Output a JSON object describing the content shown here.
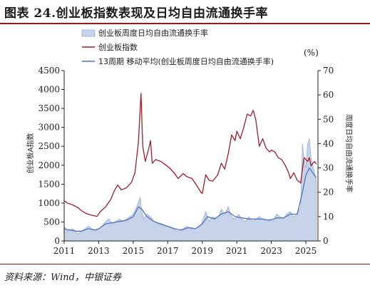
{
  "header": {
    "title": "图表 24.创业板指数表现及日均自由流通换手率"
  },
  "footer": {
    "source": "资料来源：Wind，中银证券"
  },
  "colors": {
    "accent": "#8f1b1b",
    "index_line": "#a41d2a",
    "ma_line": "#4f73b8",
    "turnover_fill": "#c7d3e8",
    "turnover_stroke": "#9aaed3"
  },
  "chart_data": {
    "type": "line",
    "legend_placement": "top-left",
    "grid": false,
    "left_axis": {
      "label": "创业板A指数",
      "ylim": [
        0,
        4500
      ],
      "ticks": [
        "0",
        "500",
        "1000",
        "1500",
        "2000",
        "2500",
        "3000",
        "3500",
        "4000",
        "4500"
      ]
    },
    "right_axis": {
      "label": "周度日均自由流通换手率",
      "unit": "(%)",
      "ylim": [
        0,
        70
      ],
      "ticks": [
        "0",
        "10",
        "20",
        "30",
        "40",
        "50",
        "60",
        "70"
      ]
    },
    "x_axis": {
      "xlim": [
        2011,
        2025.7
      ],
      "ticks": [
        "2011",
        "2013",
        "2015",
        "2017",
        "2019",
        "2021",
        "2023",
        "2025"
      ]
    },
    "legend": [
      "创业板周度日均自由流通换手率",
      "创业板指数",
      "13周期 移动平均(创业板周度日均自由流通换手率)"
    ],
    "series": [
      {
        "name": "创业板周度日均自由流通换手率",
        "axis": "right",
        "type": "area",
        "points": [
          [
            2011.0,
            6
          ],
          [
            2011.2,
            4
          ],
          [
            2011.5,
            5
          ],
          [
            2011.8,
            3
          ],
          [
            2012.0,
            4
          ],
          [
            2012.2,
            5
          ],
          [
            2012.4,
            6
          ],
          [
            2012.6,
            5
          ],
          [
            2012.8,
            4
          ],
          [
            2013.0,
            5
          ],
          [
            2013.2,
            6
          ],
          [
            2013.4,
            8
          ],
          [
            2013.6,
            9
          ],
          [
            2013.8,
            7
          ],
          [
            2014.0,
            8
          ],
          [
            2014.2,
            9
          ],
          [
            2014.4,
            8
          ],
          [
            2014.6,
            9
          ],
          [
            2014.8,
            10
          ],
          [
            2015.0,
            11
          ],
          [
            2015.2,
            14
          ],
          [
            2015.4,
            18
          ],
          [
            2015.5,
            12
          ],
          [
            2015.6,
            9
          ],
          [
            2015.8,
            11
          ],
          [
            2016.0,
            10
          ],
          [
            2016.2,
            8
          ],
          [
            2016.5,
            7
          ],
          [
            2016.8,
            6
          ],
          [
            2017.0,
            6
          ],
          [
            2017.3,
            5
          ],
          [
            2017.6,
            4
          ],
          [
            2017.9,
            5
          ],
          [
            2018.1,
            6
          ],
          [
            2018.3,
            5
          ],
          [
            2018.6,
            5
          ],
          [
            2018.9,
            6
          ],
          [
            2019.0,
            8
          ],
          [
            2019.2,
            12
          ],
          [
            2019.4,
            8
          ],
          [
            2019.6,
            10
          ],
          [
            2019.9,
            9
          ],
          [
            2020.1,
            13
          ],
          [
            2020.3,
            11
          ],
          [
            2020.5,
            14
          ],
          [
            2020.7,
            10
          ],
          [
            2020.9,
            9
          ],
          [
            2021.1,
            11
          ],
          [
            2021.3,
            9
          ],
          [
            2021.5,
            8
          ],
          [
            2021.7,
            10
          ],
          [
            2021.9,
            8
          ],
          [
            2022.1,
            9
          ],
          [
            2022.3,
            10
          ],
          [
            2022.5,
            9
          ],
          [
            2022.7,
            8
          ],
          [
            2022.9,
            9
          ],
          [
            2023.1,
            8
          ],
          [
            2023.3,
            11
          ],
          [
            2023.5,
            10
          ],
          [
            2023.7,
            9
          ],
          [
            2023.9,
            11
          ],
          [
            2024.1,
            12
          ],
          [
            2024.3,
            10
          ],
          [
            2024.5,
            11
          ],
          [
            2024.7,
            14
          ],
          [
            2024.8,
            40
          ],
          [
            2024.9,
            33
          ],
          [
            2025.0,
            30
          ],
          [
            2025.1,
            40
          ],
          [
            2025.2,
            42
          ],
          [
            2025.3,
            34
          ],
          [
            2025.4,
            31
          ],
          [
            2025.5,
            28
          ],
          [
            2025.6,
            25
          ]
        ]
      },
      {
        "name": "创业板指数",
        "axis": "left",
        "type": "line",
        "points": [
          [
            2011.0,
            1060
          ],
          [
            2011.2,
            1000
          ],
          [
            2011.5,
            950
          ],
          [
            2011.8,
            880
          ],
          [
            2012.0,
            800
          ],
          [
            2012.3,
            720
          ],
          [
            2012.6,
            680
          ],
          [
            2012.9,
            650
          ],
          [
            2013.1,
            780
          ],
          [
            2013.4,
            900
          ],
          [
            2013.7,
            1100
          ],
          [
            2013.9,
            1320
          ],
          [
            2014.1,
            1480
          ],
          [
            2014.3,
            1350
          ],
          [
            2014.6,
            1400
          ],
          [
            2014.9,
            1550
          ],
          [
            2015.1,
            1800
          ],
          [
            2015.3,
            2600
          ],
          [
            2015.45,
            3900
          ],
          [
            2015.55,
            2500
          ],
          [
            2015.7,
            2100
          ],
          [
            2015.9,
            2450
          ],
          [
            2016.0,
            2650
          ],
          [
            2016.1,
            2050
          ],
          [
            2016.3,
            2150
          ],
          [
            2016.6,
            2100
          ],
          [
            2016.9,
            2000
          ],
          [
            2017.1,
            1930
          ],
          [
            2017.4,
            1780
          ],
          [
            2017.6,
            1650
          ],
          [
            2017.9,
            1780
          ],
          [
            2018.1,
            1700
          ],
          [
            2018.4,
            1650
          ],
          [
            2018.7,
            1450
          ],
          [
            2018.9,
            1300
          ],
          [
            2019.0,
            1250
          ],
          [
            2019.2,
            1750
          ],
          [
            2019.4,
            1600
          ],
          [
            2019.6,
            1580
          ],
          [
            2019.9,
            1750
          ],
          [
            2020.1,
            2050
          ],
          [
            2020.3,
            1900
          ],
          [
            2020.5,
            2300
          ],
          [
            2020.7,
            2800
          ],
          [
            2020.9,
            2650
          ],
          [
            2021.0,
            2900
          ],
          [
            2021.2,
            2700
          ],
          [
            2021.4,
            3000
          ],
          [
            2021.6,
            3350
          ],
          [
            2021.8,
            3300
          ],
          [
            2021.95,
            3450
          ],
          [
            2022.1,
            3200
          ],
          [
            2022.3,
            2500
          ],
          [
            2022.5,
            2700
          ],
          [
            2022.7,
            2450
          ],
          [
            2022.9,
            2350
          ],
          [
            2023.0,
            2400
          ],
          [
            2023.2,
            2350
          ],
          [
            2023.4,
            2200
          ],
          [
            2023.6,
            2150
          ],
          [
            2023.8,
            2000
          ],
          [
            2024.0,
            1800
          ],
          [
            2024.1,
            1650
          ],
          [
            2024.3,
            1800
          ],
          [
            2024.5,
            1600
          ],
          [
            2024.7,
            1530
          ],
          [
            2024.8,
            1900
          ],
          [
            2024.9,
            2200
          ],
          [
            2025.0,
            2150
          ],
          [
            2025.1,
            2100
          ],
          [
            2025.2,
            2200
          ],
          [
            2025.3,
            1980
          ],
          [
            2025.4,
            2050
          ],
          [
            2025.5,
            2100
          ],
          [
            2025.6,
            2030
          ]
        ]
      },
      {
        "name": "13周期 移动平均(创业板周度日均自由流通换手率)",
        "axis": "right",
        "type": "line",
        "points": [
          [
            2011.0,
            5
          ],
          [
            2011.3,
            4.5
          ],
          [
            2011.7,
            4
          ],
          [
            2012.0,
            4
          ],
          [
            2012.4,
            5
          ],
          [
            2012.8,
            4.5
          ],
          [
            2013.0,
            5
          ],
          [
            2013.4,
            7
          ],
          [
            2013.8,
            7.5
          ],
          [
            2014.2,
            8
          ],
          [
            2014.6,
            8.5
          ],
          [
            2015.0,
            10
          ],
          [
            2015.3,
            14
          ],
          [
            2015.5,
            13
          ],
          [
            2015.8,
            10
          ],
          [
            2016.2,
            8
          ],
          [
            2016.6,
            7
          ],
          [
            2017.0,
            6
          ],
          [
            2017.4,
            5
          ],
          [
            2017.8,
            4.5
          ],
          [
            2018.2,
            5.5
          ],
          [
            2018.6,
            5
          ],
          [
            2019.0,
            7
          ],
          [
            2019.3,
            10
          ],
          [
            2019.7,
            9
          ],
          [
            2020.1,
            11
          ],
          [
            2020.5,
            12
          ],
          [
            2020.9,
            10
          ],
          [
            2021.3,
            9.5
          ],
          [
            2021.7,
            9
          ],
          [
            2022.1,
            9
          ],
          [
            2022.5,
            9
          ],
          [
            2022.9,
            8.5
          ],
          [
            2023.3,
            9.5
          ],
          [
            2023.7,
            9.5
          ],
          [
            2024.1,
            11
          ],
          [
            2024.5,
            11
          ],
          [
            2024.8,
            20
          ],
          [
            2025.0,
            27
          ],
          [
            2025.2,
            30
          ],
          [
            2025.4,
            28
          ],
          [
            2025.6,
            26
          ]
        ]
      }
    ]
  }
}
